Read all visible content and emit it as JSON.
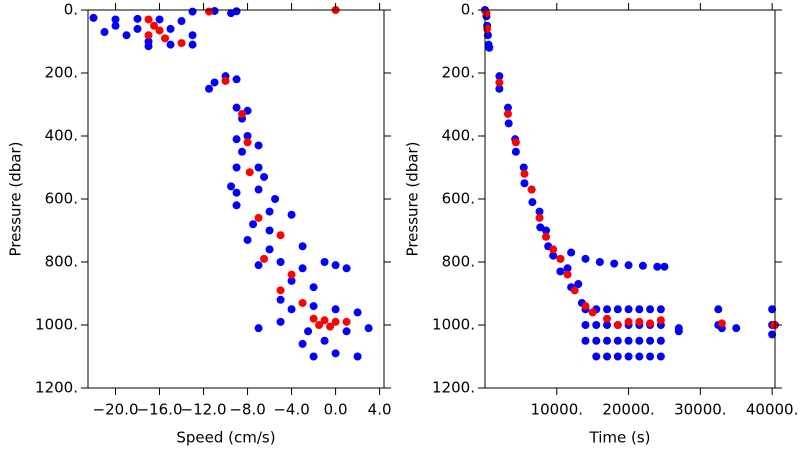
{
  "chart_data": [
    {
      "type": "scatter",
      "xlabel": "Speed (cm/s)",
      "ylabel": "Pressure (dbar)",
      "xlim": [
        -22.5,
        4.4
      ],
      "ylim": [
        1200,
        0
      ],
      "xticks": [
        {
          "value": -20,
          "label": "−20.0"
        },
        {
          "value": -16,
          "label": "−16.0"
        },
        {
          "value": -12,
          "label": "−12.0"
        },
        {
          "value": -8,
          "label": "−8.0"
        },
        {
          "value": -4,
          "label": "−4.0"
        },
        {
          "value": 0,
          "label": "0.0"
        },
        {
          "value": 4,
          "label": "4.0"
        }
      ],
      "yticks": [
        {
          "value": 0,
          "label": "0."
        },
        {
          "value": 200,
          "label": "200."
        },
        {
          "value": 400,
          "label": "400."
        },
        {
          "value": 600,
          "label": "600."
        },
        {
          "value": 800,
          "label": "800."
        },
        {
          "value": 1000,
          "label": "1000."
        },
        {
          "value": 1200,
          "label": "1200."
        }
      ],
      "series": [
        {
          "color": "#0000ff",
          "x": [
            -22,
            -20,
            -18,
            -16,
            -14,
            -20,
            -18,
            -15,
            -19,
            -17,
            -15,
            -13,
            -17,
            -13,
            -21,
            -13,
            -11,
            -9,
            -9.5,
            -11,
            -10,
            -9,
            -11.5,
            -9,
            -8,
            -8.5,
            -9,
            -8,
            -7,
            -8.5,
            -9,
            -7,
            -6.5,
            -9.5,
            -9,
            -7,
            -5.5,
            -9,
            -6,
            -7.5,
            -4,
            -6,
            -8,
            -3,
            -6,
            -5,
            -3,
            -7,
            -1,
            0,
            1,
            -4,
            -2,
            -5,
            -7,
            -4,
            -2,
            0,
            2,
            3,
            1,
            -1,
            -3,
            -2,
            0,
            2,
            -5,
            -2.5
          ],
          "values": [
            25,
            30,
            28,
            30,
            35,
            50,
            60,
            60,
            80,
            100,
            110,
            110,
            115,
            80,
            70,
            5,
            3,
            4,
            10,
            230,
            210,
            220,
            250,
            310,
            320,
            345,
            410,
            400,
            430,
            450,
            500,
            500,
            530,
            560,
            580,
            570,
            600,
            620,
            640,
            680,
            650,
            700,
            730,
            750,
            760,
            800,
            820,
            810,
            800,
            810,
            820,
            860,
            880,
            920,
            1010,
            950,
            940,
            950,
            960,
            1010,
            1020,
            1050,
            1060,
            1100,
            1090,
            1100,
            990,
            1020
          ]
        },
        {
          "color": "#ff0000",
          "x": [
            0,
            -11.5,
            -17,
            -16.5,
            -16,
            -17,
            -15.5,
            -14,
            -10,
            -8.5,
            -8,
            -7.8,
            -7,
            -5,
            -6.5,
            -4,
            -5,
            -3,
            -2,
            -1,
            -1.5,
            0,
            1,
            -0.5
          ],
          "values": [
            0,
            5,
            30,
            50,
            65,
            80,
            90,
            105,
            225,
            330,
            420,
            515,
            660,
            715,
            790,
            840,
            890,
            930,
            980,
            985,
            1000,
            990,
            990,
            1005
          ]
        }
      ]
    },
    {
      "type": "scatter",
      "xlabel": "Time (s)",
      "ylabel": "Pressure (dbar)",
      "xlim": [
        0,
        40400
      ],
      "ylim": [
        1200,
        0
      ],
      "xticks": [
        {
          "value": 10000,
          "label": "10000."
        },
        {
          "value": 20000,
          "label": "20000."
        },
        {
          "value": 30000,
          "label": "30000."
        },
        {
          "value": 40000,
          "label": "40000."
        }
      ],
      "yticks": [
        {
          "value": 0,
          "label": "0."
        },
        {
          "value": 200,
          "label": "200."
        },
        {
          "value": 400,
          "label": "400."
        },
        {
          "value": 600,
          "label": "600."
        },
        {
          "value": 800,
          "label": "800."
        },
        {
          "value": 1000,
          "label": "1000."
        },
        {
          "value": 1200,
          "label": "1200."
        }
      ],
      "series": [
        {
          "color": "#0000ff",
          "x": [
            0,
            200,
            300,
            400,
            500,
            600,
            2000,
            2000,
            3200,
            3300,
            4200,
            4300,
            5400,
            5500,
            6500,
            6600,
            7600,
            7700,
            8500,
            8800,
            9500,
            10500,
            10500,
            11500,
            12000,
            13000,
            13500,
            12000,
            14000,
            16000,
            18000,
            20000,
            22000,
            24000,
            25000,
            14000,
            14000,
            14000,
            15500,
            15500,
            15500,
            15500,
            17000,
            17000,
            17000,
            17000,
            18500,
            18500,
            18500,
            18500,
            20000,
            20000,
            20000,
            20000,
            21500,
            21500,
            21500,
            21500,
            23000,
            23000,
            23000,
            23000,
            24500,
            24500,
            24500,
            24500,
            27000,
            27000,
            32500,
            32500,
            33000,
            35000,
            40000,
            40000,
            40000,
            40400
          ],
          "values": [
            0,
            20,
            50,
            80,
            110,
            120,
            210,
            250,
            310,
            360,
            410,
            450,
            500,
            550,
            570,
            610,
            640,
            690,
            700,
            750,
            780,
            790,
            830,
            820,
            880,
            870,
            930,
            770,
            790,
            800,
            805,
            810,
            812,
            815,
            815,
            950,
            1000,
            1050,
            950,
            1000,
            1050,
            1100,
            950,
            1000,
            1050,
            1100,
            950,
            1000,
            1050,
            1100,
            950,
            1000,
            1050,
            1100,
            950,
            1000,
            1050,
            1100,
            950,
            1000,
            1050,
            1100,
            950,
            1000,
            1050,
            1100,
            1010,
            1020,
            950,
            1000,
            1010,
            1010,
            950,
            1000,
            1030,
            1000
          ]
        },
        {
          "color": "#ff0000",
          "x": [
            200,
            300,
            2000,
            3200,
            4300,
            5500,
            6500,
            7600,
            8500,
            9500,
            10500,
            11500,
            12500,
            14000,
            15000,
            17000,
            18500,
            20000,
            21500,
            23000,
            24500,
            33000,
            40300
          ],
          "values": [
            10,
            60,
            230,
            330,
            420,
            520,
            570,
            660,
            720,
            760,
            790,
            840,
            890,
            940,
            960,
            980,
            1000,
            990,
            990,
            995,
            985,
            995,
            1000
          ]
        }
      ]
    }
  ]
}
